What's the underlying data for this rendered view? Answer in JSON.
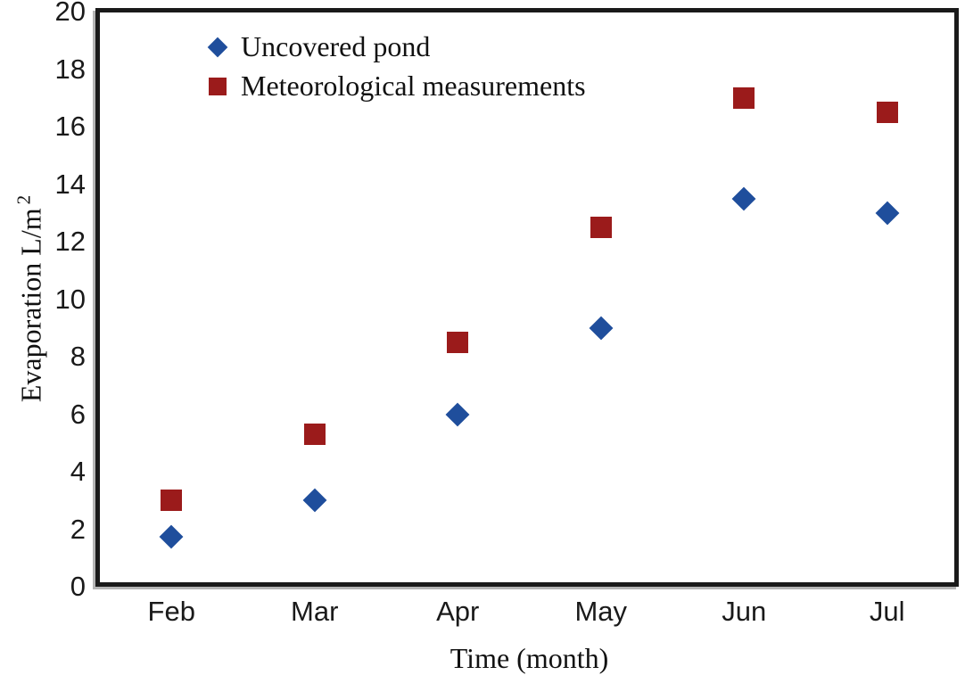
{
  "chart_data": {
    "type": "scatter",
    "title": "",
    "xlabel": "Time (month)",
    "ylabel": "Evaporation L/m",
    "ylabel_superscript": "2",
    "categories": [
      "Feb",
      "Mar",
      "Apr",
      "May",
      "Jun",
      "Jul"
    ],
    "y_axis": {
      "min": 0,
      "max": 20,
      "step": 2,
      "tick_labels": [
        "0",
        "2",
        "4",
        "6",
        "8",
        "10",
        "12",
        "14",
        "16",
        "18",
        "20"
      ]
    },
    "grid": false,
    "legend_position": "inside-top-left",
    "series": [
      {
        "name": "Uncovered pond",
        "marker": "diamond",
        "color": "#1f4e9c",
        "values": [
          1.75,
          3,
          6,
          9,
          13.5,
          13
        ]
      },
      {
        "name": "Meteorological measurements",
        "marker": "square",
        "color": "#9b1b1b",
        "values": [
          3,
          5.3,
          8.5,
          12.5,
          17,
          16.5
        ]
      }
    ]
  },
  "colors": {
    "frame": "#1a1a1a",
    "text": "#111111"
  }
}
